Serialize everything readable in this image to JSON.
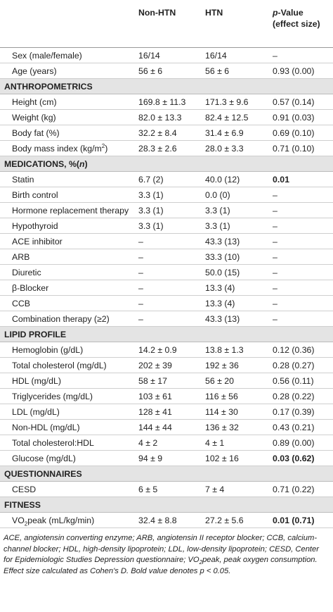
{
  "table": {
    "columns": [
      "Non-HTN",
      "HTN",
      [
        {
          "text": "p",
          "format": "i"
        },
        "-Value (effect size)"
      ]
    ],
    "rows": [
      {
        "label": "Sex (male/female)",
        "values": [
          "16/14",
          "16/14",
          "–"
        ]
      },
      {
        "label": "Age (years)",
        "values": [
          "56 ± 6",
          "56 ± 6",
          "0.93 (0.00)"
        ]
      },
      {
        "section": "ANTHROPOMETRICS"
      },
      {
        "label": "Height (cm)",
        "values": [
          "169.8 ± 11.3",
          "171.3 ± 9.6",
          "0.57 (0.14)"
        ]
      },
      {
        "label": "Weight (kg)",
        "values": [
          "82.0 ± 13.3",
          "82.4 ± 12.5",
          "0.91 (0.03)"
        ]
      },
      {
        "label": "Body fat (%)",
        "values": [
          "32.2 ± 8.4",
          "31.4 ± 6.9",
          "0.69 (0.10)"
        ]
      },
      {
        "label": [
          "Body mass index (kg/m",
          {
            "text": "2",
            "format": "sup"
          },
          ")"
        ],
        "values": [
          "28.3 ± 2.6",
          "28.0 ± 3.3",
          "0.71 (0.10)"
        ]
      },
      {
        "section": [
          "MEDICATIONS, %(",
          {
            "text": "n",
            "format": "i"
          },
          ")"
        ]
      },
      {
        "label": "Statin",
        "values": [
          "6.7 (2)",
          "40.0 (12)",
          {
            "text": "0.01",
            "format": "b"
          }
        ]
      },
      {
        "label": "Birth control",
        "values": [
          "3.3 (1)",
          "0.0 (0)",
          "–"
        ]
      },
      {
        "label": "Hormone replacement therapy",
        "values": [
          "3.3 (1)",
          "3.3 (1)",
          "–"
        ]
      },
      {
        "label": "Hypothyroid",
        "values": [
          "3.3 (1)",
          "3.3 (1)",
          "–"
        ]
      },
      {
        "label": "ACE inhibitor",
        "values": [
          "–",
          "43.3 (13)",
          "–"
        ]
      },
      {
        "label": "ARB",
        "values": [
          "–",
          "33.3 (10)",
          "–"
        ]
      },
      {
        "label": "Diuretic",
        "values": [
          "–",
          "50.0 (15)",
          "–"
        ]
      },
      {
        "label": "β-Blocker",
        "values": [
          "–",
          "13.3 (4)",
          "–"
        ]
      },
      {
        "label": "CCB",
        "values": [
          "–",
          "13.3 (4)",
          "–"
        ]
      },
      {
        "label": "Combination therapy (≥2)",
        "values": [
          "–",
          "43.3 (13)",
          "–"
        ]
      },
      {
        "section": "LIPID PROFILE"
      },
      {
        "label": "Hemoglobin (g/dL)",
        "values": [
          "14.2 ± 0.9",
          "13.8 ± 1.3",
          "0.12 (0.36)"
        ]
      },
      {
        "label": "Total cholesterol (mg/dL)",
        "values": [
          "202 ± 39",
          "192 ± 36",
          "0.28 (0.27)"
        ]
      },
      {
        "label": "HDL (mg/dL)",
        "values": [
          "58 ± 17",
          "56 ± 20",
          "0.56 (0.11)"
        ]
      },
      {
        "label": "Triglycerides (mg/dL)",
        "values": [
          "103 ± 61",
          "116 ± 56",
          "0.28 (0.22)"
        ]
      },
      {
        "label": "LDL (mg/dL)",
        "values": [
          "128 ± 41",
          "114 ± 30",
          "0.17 (0.39)"
        ]
      },
      {
        "label": "Non-HDL (mg/dL)",
        "values": [
          "144 ± 44",
          "136 ± 32",
          "0.43 (0.21)"
        ]
      },
      {
        "label": "Total cholesterol:HDL",
        "values": [
          "4 ± 2",
          "4 ± 1",
          "0.89 (0.00)"
        ]
      },
      {
        "label": "Glucose (mg/dL)",
        "values": [
          "94 ± 9",
          "102 ± 16",
          {
            "text": "0.03 (0.62)",
            "format": "b"
          }
        ]
      },
      {
        "section": "QUESTIONNAIRES"
      },
      {
        "label": "CESD",
        "values": [
          "6 ± 5",
          "7 ± 4",
          "0.71 (0.22)"
        ]
      },
      {
        "section": "FITNESS"
      },
      {
        "label": [
          "VO",
          {
            "text": "2",
            "format": "sub"
          },
          "peak (mL/kg/min)"
        ],
        "values": [
          "32.4 ± 8.8",
          "27.2 ± 5.6",
          {
            "text": "0.01 (0.71)",
            "format": "b"
          }
        ]
      }
    ],
    "footnote": [
      "ACE, angiotensin converting enzyme; ARB, angiotensin II receptor blocker; CCB, calcium-channel blocker; HDL, high-density lipoprotein; LDL, low-density lipoprotein; CESD, Center for Epidemiologic Studies Depression questionnaire; VO",
      {
        "text": "2",
        "format": "sub"
      },
      "peak, peak oxygen consumption. Effect size calculated as Cohen's D. Bold value denotes p < 0.05."
    ]
  }
}
